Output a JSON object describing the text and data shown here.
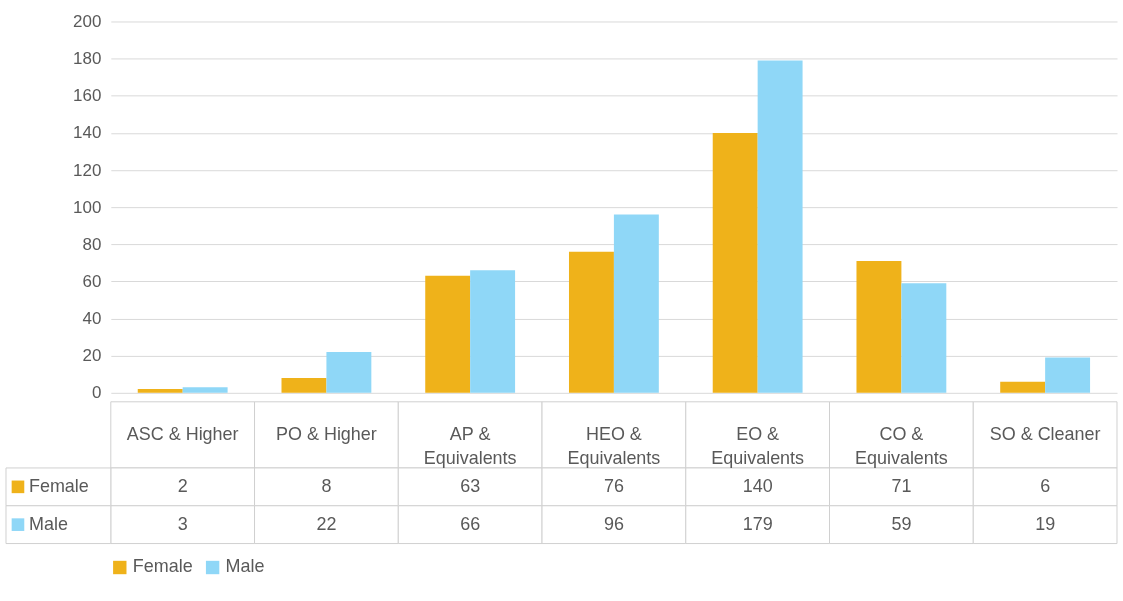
{
  "chart_data": {
    "type": "bar",
    "categories": [
      "ASC & Higher",
      "PO & Higher",
      "AP & Equivalents",
      "HEO & Equivalents",
      "EO & Equivalents",
      "CO & Equivalents",
      "SO & Cleaner"
    ],
    "series": [
      {
        "name": "Female",
        "color": "#efb21a",
        "values": [
          2,
          8,
          63,
          76,
          140,
          71,
          6
        ]
      },
      {
        "name": "Male",
        "color": "#8fd7f7",
        "values": [
          3,
          22,
          66,
          96,
          179,
          59,
          19
        ]
      }
    ],
    "ylim": [
      0,
      200
    ],
    "yticks": [
      0,
      20,
      40,
      60,
      80,
      100,
      120,
      140,
      160,
      180,
      200
    ],
    "grid": "y",
    "legend": "bottom",
    "data_labels": true
  }
}
